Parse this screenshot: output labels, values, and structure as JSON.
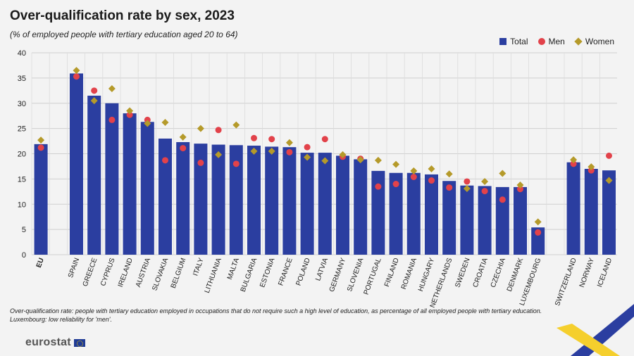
{
  "header": {
    "title": "Over-qualification rate by sex, 2023",
    "subtitle": "(% of employed people with tertiary education aged 20 to 64)"
  },
  "legend": {
    "total": "Total",
    "men": "Men",
    "women": "Women"
  },
  "colors": {
    "total": "#2b3ea0",
    "men": "#e2424a",
    "women": "#b59a2a",
    "grid": "#cfcfcf"
  },
  "notes": {
    "line1": "Over-qualification rate: people with tertiary education employed in occupations that do not require such a high level of education, as percentage of all employed people with tertiary education.",
    "line2": "Luxembourg: low reliability for 'men'."
  },
  "footer": {
    "logo_text": "eurostat"
  },
  "chart_data": {
    "type": "bar",
    "ylim": [
      0,
      40
    ],
    "yticks": [
      0,
      5,
      10,
      15,
      20,
      25,
      30,
      35,
      40
    ],
    "grid": true,
    "legend_position": "top-right",
    "categories": [
      "EU",
      "SPAIN",
      "GREECE",
      "CYPRUS",
      "IRELAND",
      "AUSTRIA",
      "SLOVAKIA",
      "BELGIUM",
      "ITALY",
      "LITHUANIA",
      "MALTA",
      "BULGARIA",
      "ESTONIA",
      "FRANCE",
      "POLAND",
      "LATVIA",
      "GERMANY",
      "SLOVENIA",
      "PORTUGAL",
      "FINLAND",
      "ROMANIA",
      "HUNGARY",
      "NETHERLANDS",
      "SWEDEN",
      "CROATIA",
      "CZECHIA",
      "DENMARK",
      "LUXEMBOURG",
      "SWITZERLAND",
      "NORWAY",
      "ICELAND"
    ],
    "series": [
      {
        "name": "Total",
        "values": [
          21.9,
          35.9,
          31.5,
          30.0,
          28.0,
          26.3,
          23.0,
          22.3,
          22.0,
          21.8,
          21.7,
          21.6,
          21.4,
          21.3,
          20.2,
          20.2,
          19.6,
          18.9,
          16.6,
          16.2,
          16.2,
          15.9,
          14.6,
          13.7,
          13.6,
          13.4,
          13.4,
          5.4,
          18.3,
          17.0,
          16.7
        ]
      },
      {
        "name": "Men",
        "values": [
          21.2,
          35.3,
          32.5,
          26.7,
          27.7,
          26.7,
          18.7,
          21.1,
          18.2,
          24.7,
          18.0,
          23.1,
          22.9,
          20.3,
          21.3,
          22.9,
          19.4,
          19.0,
          13.5,
          14.0,
          15.4,
          14.7,
          13.3,
          14.5,
          12.6,
          10.9,
          13.0,
          4.4,
          18.0,
          16.7,
          19.6
        ]
      },
      {
        "name": "Women",
        "values": [
          22.7,
          36.5,
          30.5,
          32.9,
          28.5,
          26.0,
          26.2,
          23.3,
          25.0,
          19.8,
          25.7,
          20.5,
          20.5,
          22.2,
          19.3,
          18.6,
          19.8,
          18.8,
          18.7,
          17.9,
          16.6,
          17.0,
          16.0,
          13.1,
          14.5,
          16.1,
          13.8,
          6.5,
          18.8,
          17.4,
          14.7
        ]
      }
    ]
  }
}
